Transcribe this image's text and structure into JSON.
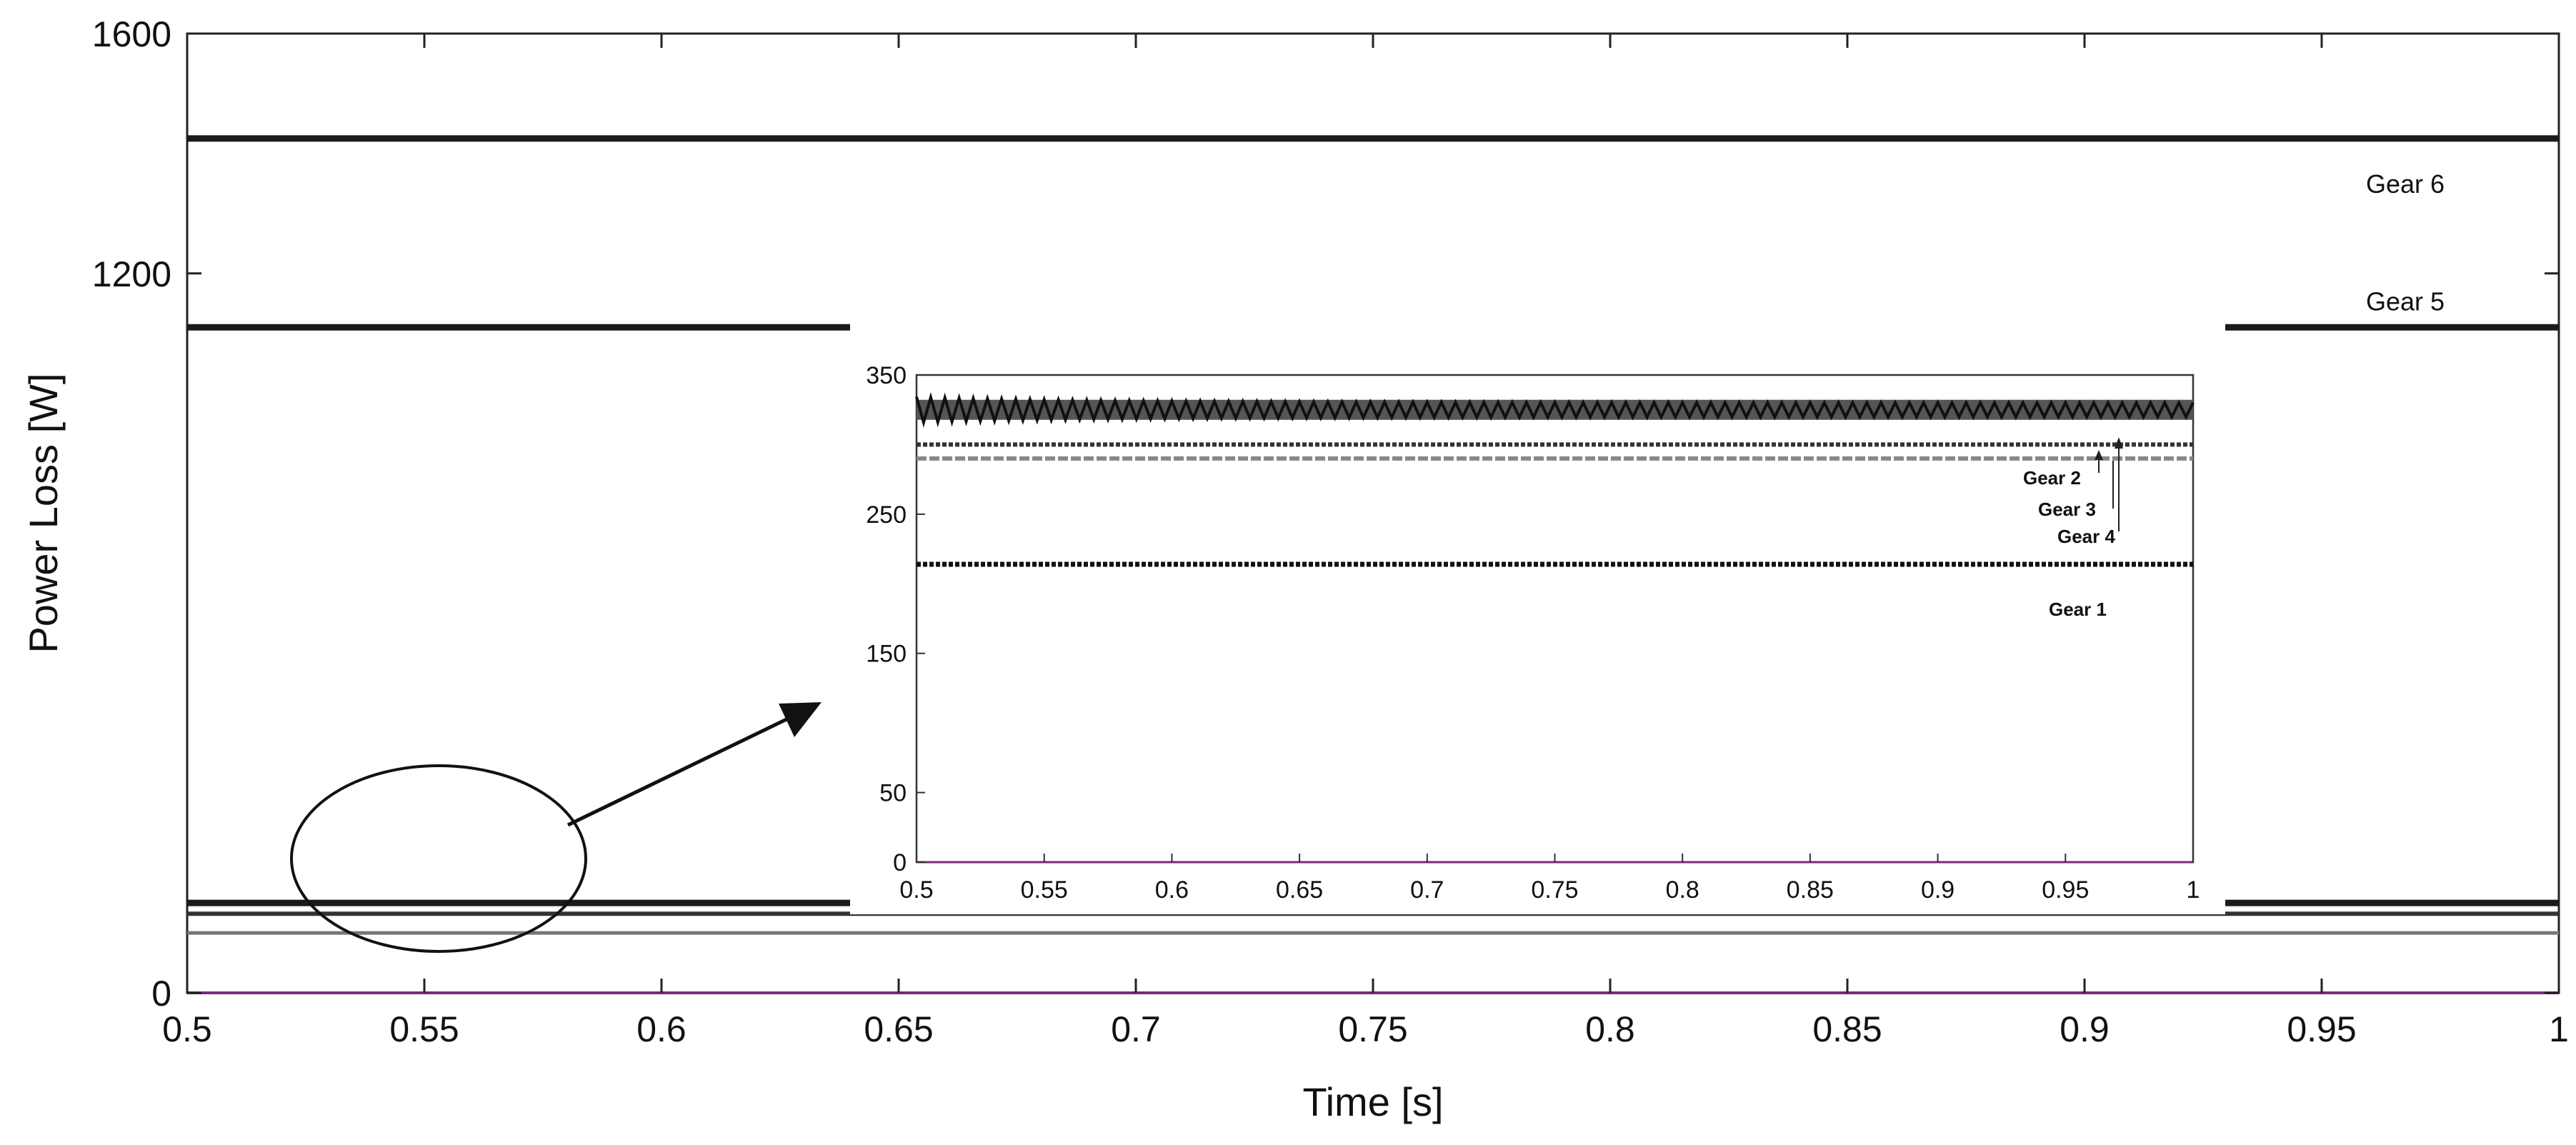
{
  "chart_data": [
    {
      "id": "main",
      "type": "line",
      "title": "",
      "xlabel": "Time [s]",
      "ylabel": "Power Loss [W]",
      "xlim": [
        0.5,
        1.0
      ],
      "ylim": [
        0,
        1600
      ],
      "x_ticks": [
        "0.5",
        "0.55",
        "0.6",
        "0.65",
        "0.7",
        "0.75",
        "0.8",
        "0.85",
        "0.9",
        "0.95",
        "1"
      ],
      "y_ticks": [
        "0",
        "1200",
        "1600"
      ],
      "grid": false,
      "series": [
        {
          "name": "Gear 6",
          "value": 1425,
          "color": "#1a1a1a",
          "labeled": true
        },
        {
          "name": "Gear 5",
          "value": 1110,
          "color": "#1a1a1a",
          "labeled": true
        },
        {
          "name": "Gear 4",
          "value": 150,
          "color": "#1a1a1a",
          "labeled": false
        },
        {
          "name": "Gear 3",
          "value": 132,
          "color": "#333333",
          "labeled": false
        },
        {
          "name": "Gear 2",
          "value": 100,
          "color": "#777777",
          "labeled": false
        },
        {
          "name": "Gear 1",
          "value": 0,
          "color": "#7a2a7a",
          "labeled": false
        }
      ]
    },
    {
      "id": "inset",
      "type": "line",
      "title": "",
      "xlabel": "",
      "ylabel": "",
      "xlim": [
        0.5,
        1.0
      ],
      "ylim": [
        0,
        350
      ],
      "x_ticks": [
        "0.5",
        "0.55",
        "0.6",
        "0.65",
        "0.7",
        "0.75",
        "0.8",
        "0.85",
        "0.9",
        "0.95",
        "1"
      ],
      "y_ticks": [
        "0",
        "50",
        "150",
        "250",
        "350"
      ],
      "grid": false,
      "series": [
        {
          "name": "Gear 4",
          "value": 325,
          "color": "#111111",
          "oscillating": true
        },
        {
          "name": "Gear 3",
          "value": 300,
          "color": "#333333"
        },
        {
          "name": "Gear 2",
          "value": 290,
          "color": "#888888"
        },
        {
          "name": "Gear 1",
          "value": 214,
          "color": "#111111"
        },
        {
          "name": "baseline",
          "value": 0,
          "color": "#7a2a7a"
        }
      ],
      "annotations": [
        "Gear 2",
        "Gear 3",
        "Gear 4",
        "Gear 1"
      ]
    }
  ]
}
